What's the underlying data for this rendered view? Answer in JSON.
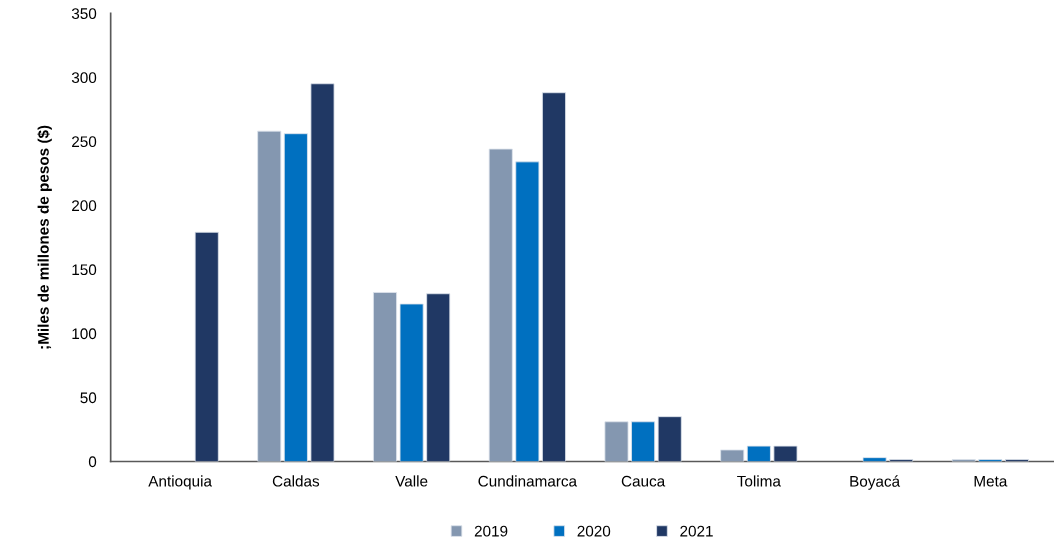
{
  "chart_data": {
    "type": "bar",
    "ylabel": ";Miles de millones de pesos ($)",
    "categories": [
      "Antioquia",
      "Caldas",
      "Valle",
      "Cundinamarca",
      "Cauca",
      "Tolima",
      "Boyacá",
      "Meta"
    ],
    "series": [
      {
        "name": "2019",
        "color": "#8497b0",
        "values": [
          null,
          258,
          132,
          244,
          31,
          9,
          null,
          1.5
        ]
      },
      {
        "name": "2020",
        "color": "#0070c0",
        "values": [
          null,
          256,
          123,
          234,
          31,
          12,
          3,
          1.5
        ]
      },
      {
        "name": "2021",
        "color": "#203864",
        "values": [
          179,
          295,
          131,
          288,
          35,
          12,
          1.5,
          1.5
        ]
      }
    ],
    "ylim": [
      0,
      350
    ],
    "yticks": [
      0,
      50,
      100,
      150,
      200,
      250,
      300,
      350
    ],
    "grid": false,
    "legend": "bottom"
  }
}
